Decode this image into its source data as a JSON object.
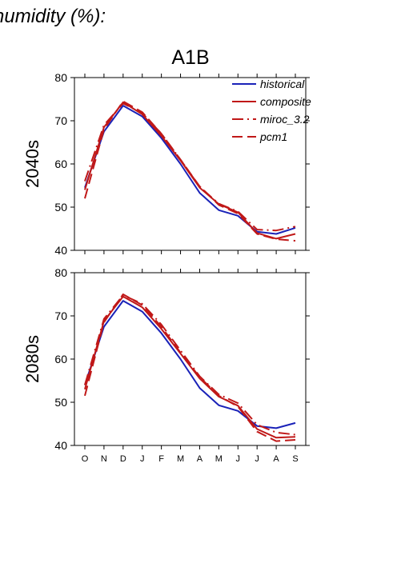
{
  "heading": "humidity (%):",
  "scenario": "A1B",
  "colors": {
    "historical": "#1a22b8",
    "projection": "#c01818"
  },
  "chart_data": [
    {
      "type": "line",
      "row_label": "2040s",
      "x": [
        "O",
        "N",
        "D",
        "J",
        "F",
        "M",
        "A",
        "M",
        "J",
        "J",
        "A",
        "S"
      ],
      "ylim": [
        40,
        80
      ],
      "yticks": [
        40,
        50,
        60,
        70,
        80
      ],
      "legend_position": "top-right",
      "series": [
        {
          "name": "historical",
          "style": "solid",
          "color": "#1a22b8",
          "values": [
            54.5,
            67.5,
            73.5,
            71.0,
            66.0,
            60.0,
            53.3,
            49.3,
            48.0,
            44.3,
            43.8,
            45.2
          ]
        },
        {
          "name": "composite",
          "style": "solid",
          "color": "#c01818",
          "values": [
            54.0,
            68.5,
            74.3,
            71.5,
            66.5,
            60.8,
            54.5,
            50.7,
            48.8,
            44.0,
            42.7,
            43.8
          ]
        },
        {
          "name": "miroc_3.2",
          "style": "dashdot",
          "color": "#c01818",
          "values": [
            56.0,
            69.0,
            74.0,
            71.8,
            67.0,
            61.0,
            54.7,
            50.8,
            49.0,
            44.8,
            44.6,
            45.5
          ]
        },
        {
          "name": "pcm1",
          "style": "dashed",
          "color": "#c01818",
          "values": [
            52.0,
            68.0,
            74.5,
            72.0,
            67.0,
            61.0,
            54.8,
            50.5,
            48.5,
            43.8,
            42.6,
            42.2
          ]
        }
      ]
    },
    {
      "type": "line",
      "row_label": "2080s",
      "x": [
        "O",
        "N",
        "D",
        "J",
        "F",
        "M",
        "A",
        "M",
        "J",
        "J",
        "A",
        "S"
      ],
      "ylim": [
        40,
        80
      ],
      "yticks": [
        40,
        50,
        60,
        70,
        80
      ],
      "series": [
        {
          "name": "historical",
          "style": "solid",
          "color": "#1a22b8",
          "values": [
            54.0,
            67.5,
            73.5,
            71.0,
            66.0,
            60.0,
            53.3,
            49.3,
            48.0,
            44.5,
            44.0,
            45.2
          ]
        },
        {
          "name": "composite",
          "style": "solid",
          "color": "#c01818",
          "values": [
            53.0,
            68.8,
            74.5,
            72.0,
            67.0,
            61.3,
            55.5,
            51.3,
            49.2,
            43.8,
            41.8,
            42.0
          ]
        },
        {
          "name": "miroc_3.2",
          "style": "dashdot",
          "color": "#c01818",
          "values": [
            54.0,
            69.3,
            74.8,
            72.8,
            68.0,
            62.0,
            56.0,
            51.8,
            49.8,
            44.8,
            43.0,
            42.5
          ]
        },
        {
          "name": "pcm1",
          "style": "dashed",
          "color": "#c01818",
          "values": [
            51.5,
            68.5,
            75.0,
            72.5,
            67.5,
            61.5,
            55.8,
            51.5,
            49.0,
            43.2,
            41.0,
            41.3
          ]
        }
      ]
    }
  ]
}
